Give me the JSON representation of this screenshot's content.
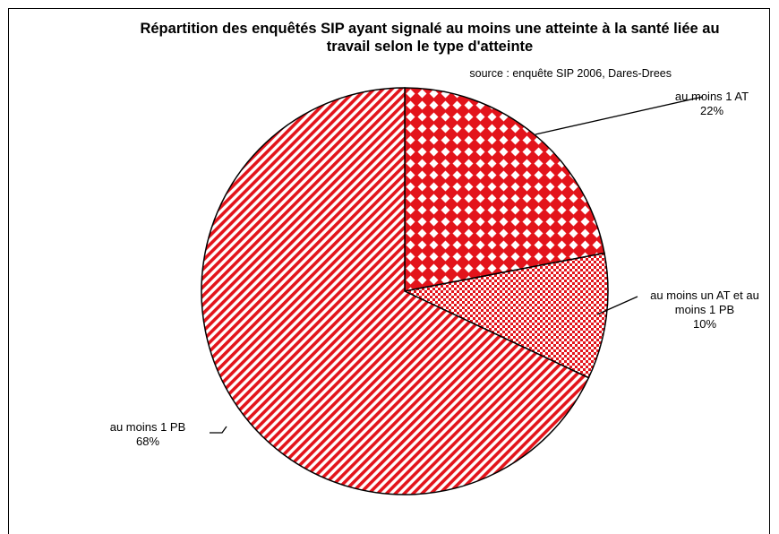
{
  "chart_data": {
    "type": "pie",
    "title": "Répartition des enquêtés SIP ayant signalé au moins une atteinte à la santé liée au travail selon le type d'atteinte",
    "subtitle": "source : enquête SIP 2006, Dares-Drees",
    "categories": [
      "au moins 1 AT",
      "au moins un AT et au moins 1 PB",
      "au moins 1 PB"
    ],
    "values": [
      22,
      10,
      68
    ],
    "value_labels": [
      "22%",
      "10%",
      "68%"
    ],
    "colors": [
      "#e3141b",
      "#e3141b",
      "#e3141b"
    ],
    "patterns": [
      "diamonds",
      "checker",
      "stripes"
    ]
  }
}
